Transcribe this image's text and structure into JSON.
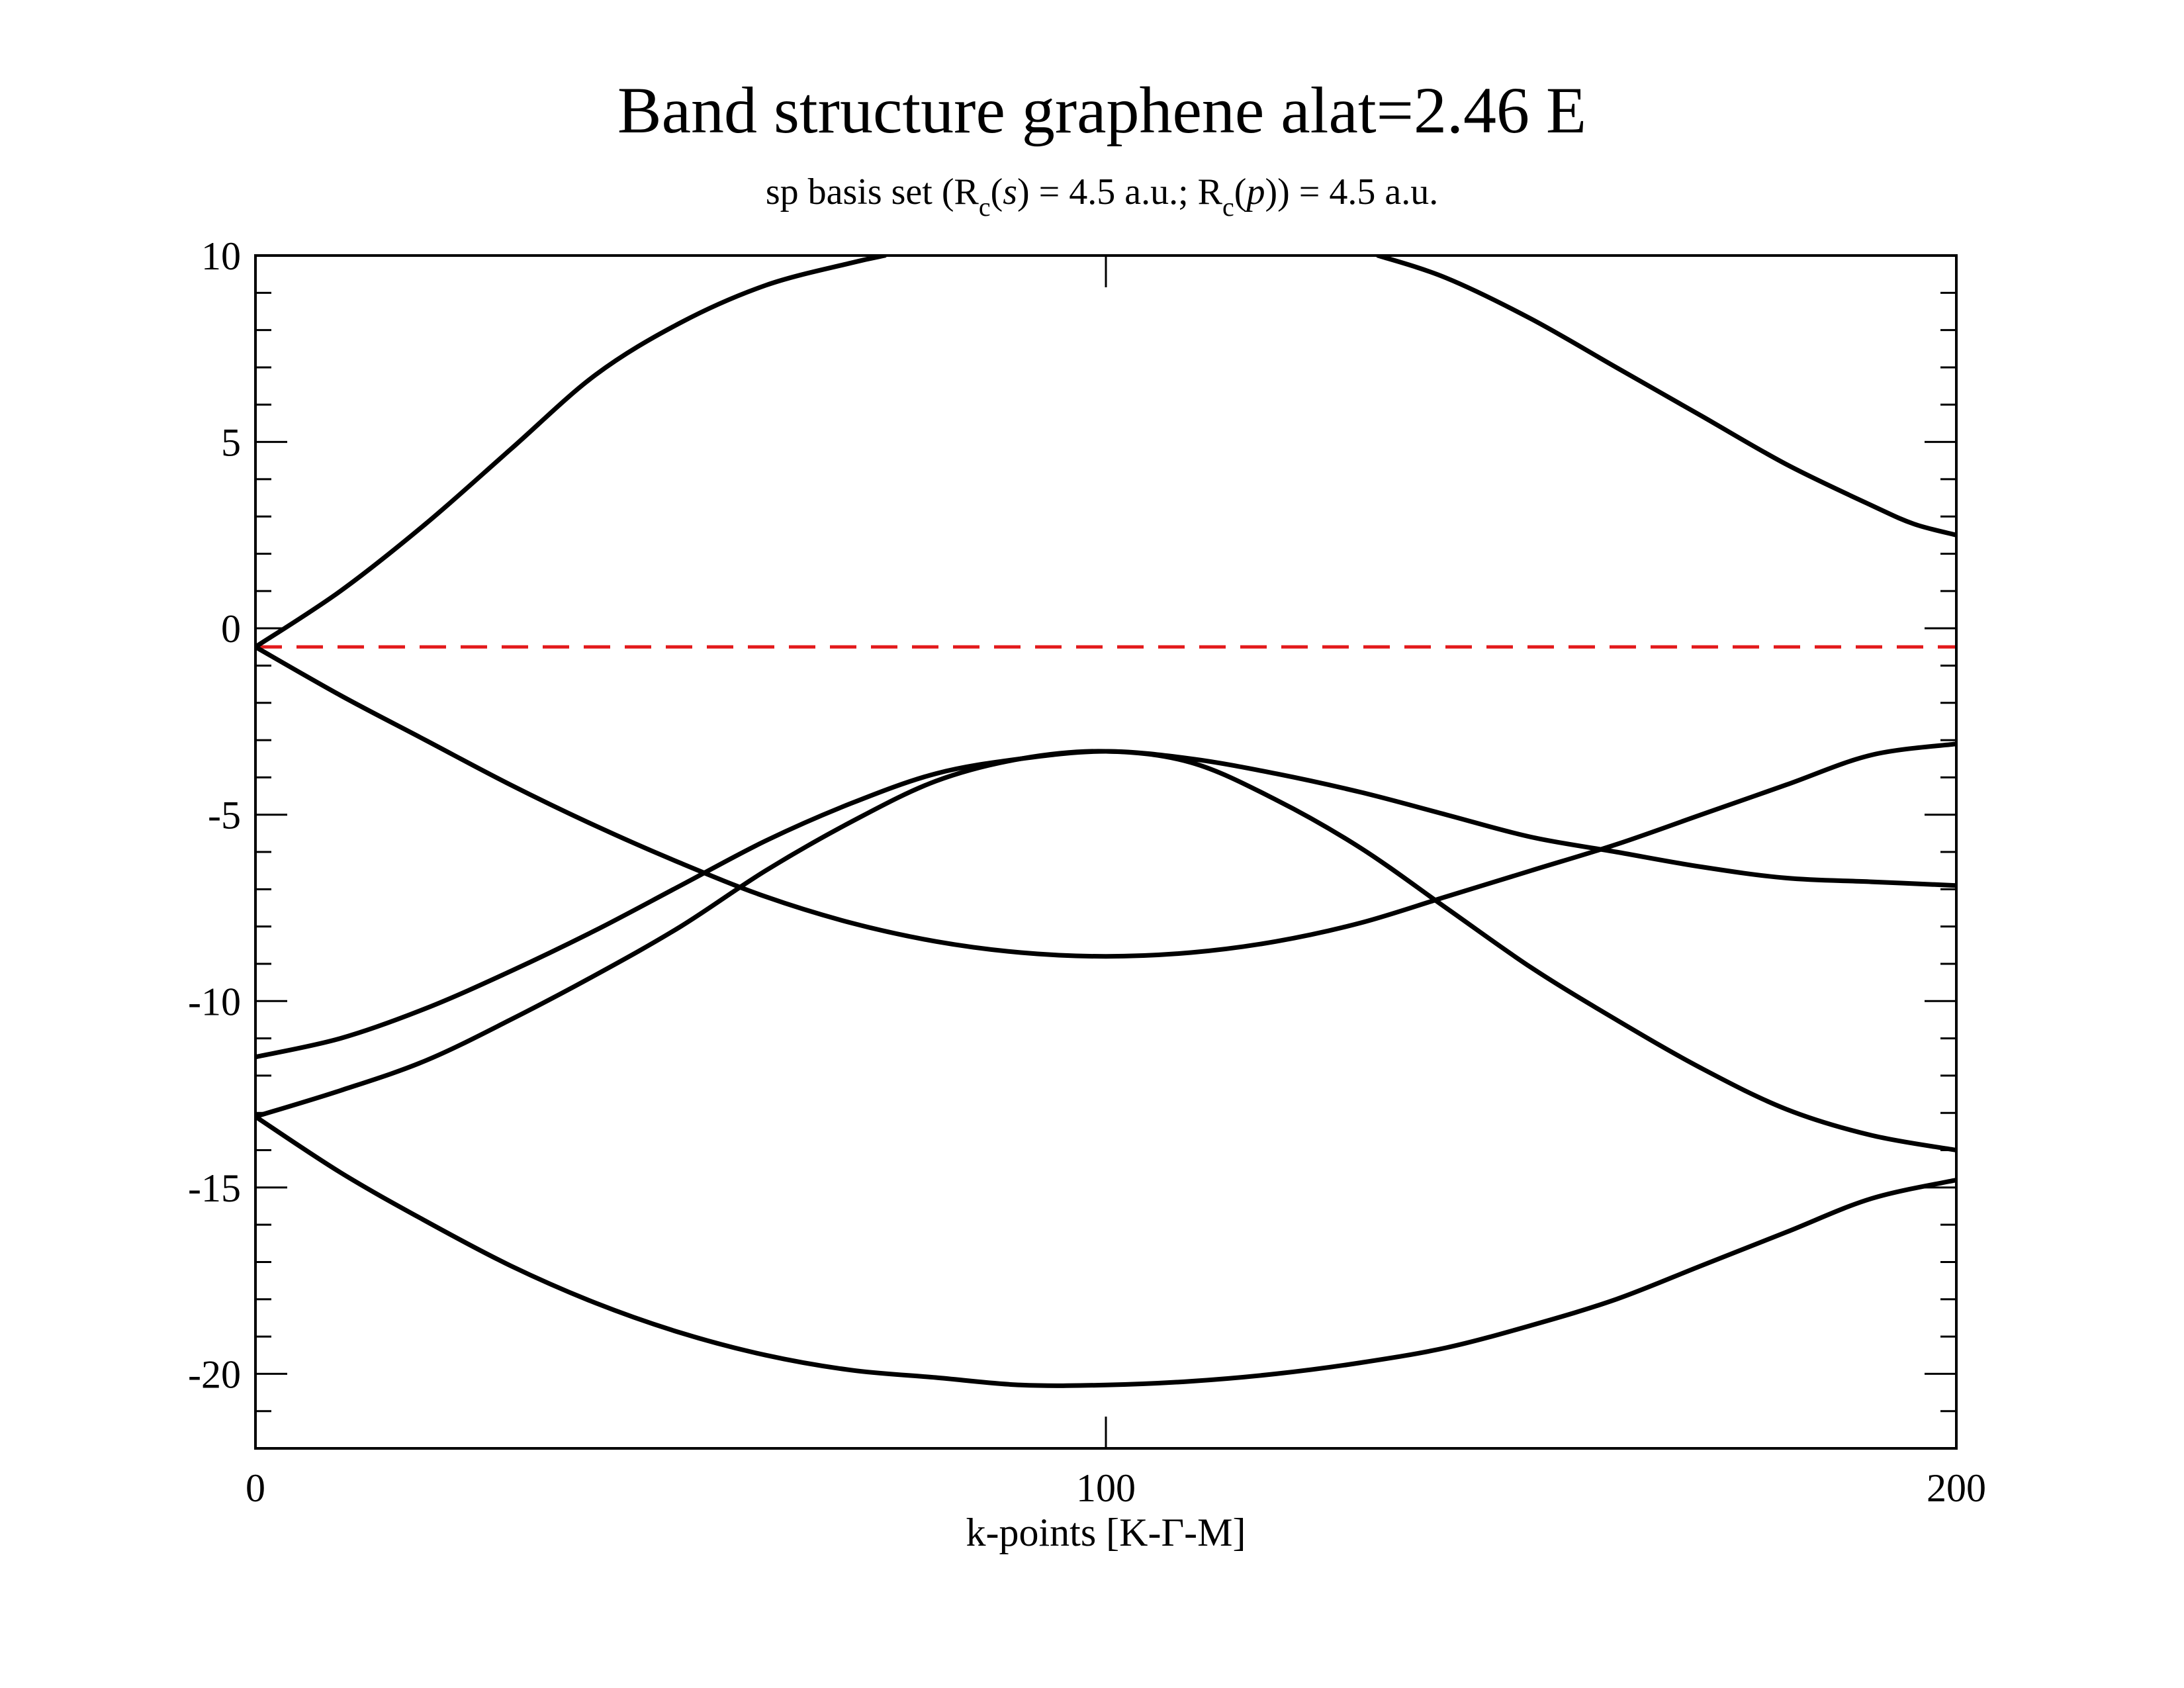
{
  "chart_data": {
    "type": "line",
    "title": "Band structure graphene alat=2.46 E",
    "subtitle": {
      "pre": "sp basis set (R",
      "sub1": "c",
      "mid1": "(",
      "it1": "s",
      "mid2": ") = 4.5 a.u.; R",
      "sub2": "c",
      "mid3": "(",
      "it2": "p",
      "post": ")) = 4.5 a.u."
    },
    "xlabel": "k-points  [K-Γ-M]",
    "ylabel": "",
    "xlim": [
      0,
      200
    ],
    "ylim": [
      -22,
      10
    ],
    "xticks": [
      0,
      100,
      200
    ],
    "xtick_labels": [
      "0",
      "100",
      "200"
    ],
    "yticks": [
      10,
      5,
      0,
      -5,
      -10,
      -15,
      -20
    ],
    "ytick_labels": [
      "10",
      "5",
      "0",
      "-5",
      "-10",
      "-15",
      "-20"
    ],
    "grid": false,
    "fermi_level": -0.5,
    "fermi_color": "#e31a1c",
    "line_color": "#000000",
    "series": [
      {
        "x": [
          0,
          10,
          20,
          30,
          40,
          50,
          60,
          70,
          74
        ],
        "values": [
          -0.5,
          1.0,
          2.8,
          4.8,
          6.8,
          8.2,
          9.2,
          9.8,
          10.0
        ]
      },
      {
        "x": [
          132,
          140,
          150,
          160,
          170,
          180,
          190,
          195,
          200
        ],
        "values": [
          10.0,
          9.4,
          8.3,
          7.0,
          5.7,
          4.4,
          3.3,
          2.8,
          2.5
        ]
      },
      {
        "x": [
          0,
          10,
          20,
          30,
          40,
          50,
          60,
          70,
          80,
          90,
          100,
          110,
          120,
          130,
          140,
          150,
          160,
          170,
          180,
          190,
          200
        ],
        "values": [
          -0.5,
          -1.8,
          -3.0,
          -4.2,
          -5.3,
          -6.3,
          -7.2,
          -7.9,
          -8.4,
          -8.7,
          -8.8,
          -8.7,
          -8.4,
          -7.9,
          -7.2,
          -6.5,
          -5.8,
          -5.0,
          -4.2,
          -3.4,
          -3.1
        ]
      },
      {
        "x": [
          0,
          10,
          20,
          30,
          40,
          50,
          60,
          70,
          80,
          90,
          100,
          110,
          120,
          130,
          140,
          150,
          160,
          170,
          180,
          190,
          200
        ],
        "values": [
          -11.5,
          -11.0,
          -10.2,
          -9.2,
          -8.1,
          -6.9,
          -5.7,
          -4.7,
          -3.9,
          -3.5,
          -3.3,
          -3.5,
          -3.9,
          -4.4,
          -5.0,
          -5.6,
          -6.0,
          -6.4,
          -6.7,
          -6.8,
          -6.9
        ]
      },
      {
        "x": [
          0,
          10,
          20,
          30,
          40,
          50,
          60,
          70,
          80,
          90,
          100,
          110,
          120,
          130,
          140,
          150,
          160,
          170,
          180,
          190,
          200
        ],
        "values": [
          -13.1,
          -12.4,
          -11.6,
          -10.5,
          -9.3,
          -8.0,
          -6.5,
          -5.2,
          -4.1,
          -3.5,
          -3.3,
          -3.6,
          -4.6,
          -5.9,
          -7.5,
          -9.1,
          -10.5,
          -11.8,
          -12.9,
          -13.6,
          -14.0
        ]
      },
      {
        "x": [
          0,
          10,
          20,
          30,
          40,
          50,
          60,
          70,
          80,
          90,
          100,
          110,
          120,
          130,
          140,
          150,
          160,
          170,
          180,
          190,
          200
        ],
        "values": [
          -13.1,
          -14.6,
          -15.9,
          -17.1,
          -18.1,
          -18.9,
          -19.5,
          -19.9,
          -20.1,
          -20.3,
          -20.3,
          -20.2,
          -20.0,
          -19.7,
          -19.3,
          -18.7,
          -18.0,
          -17.1,
          -16.2,
          -15.3,
          -14.8
        ]
      }
    ]
  }
}
